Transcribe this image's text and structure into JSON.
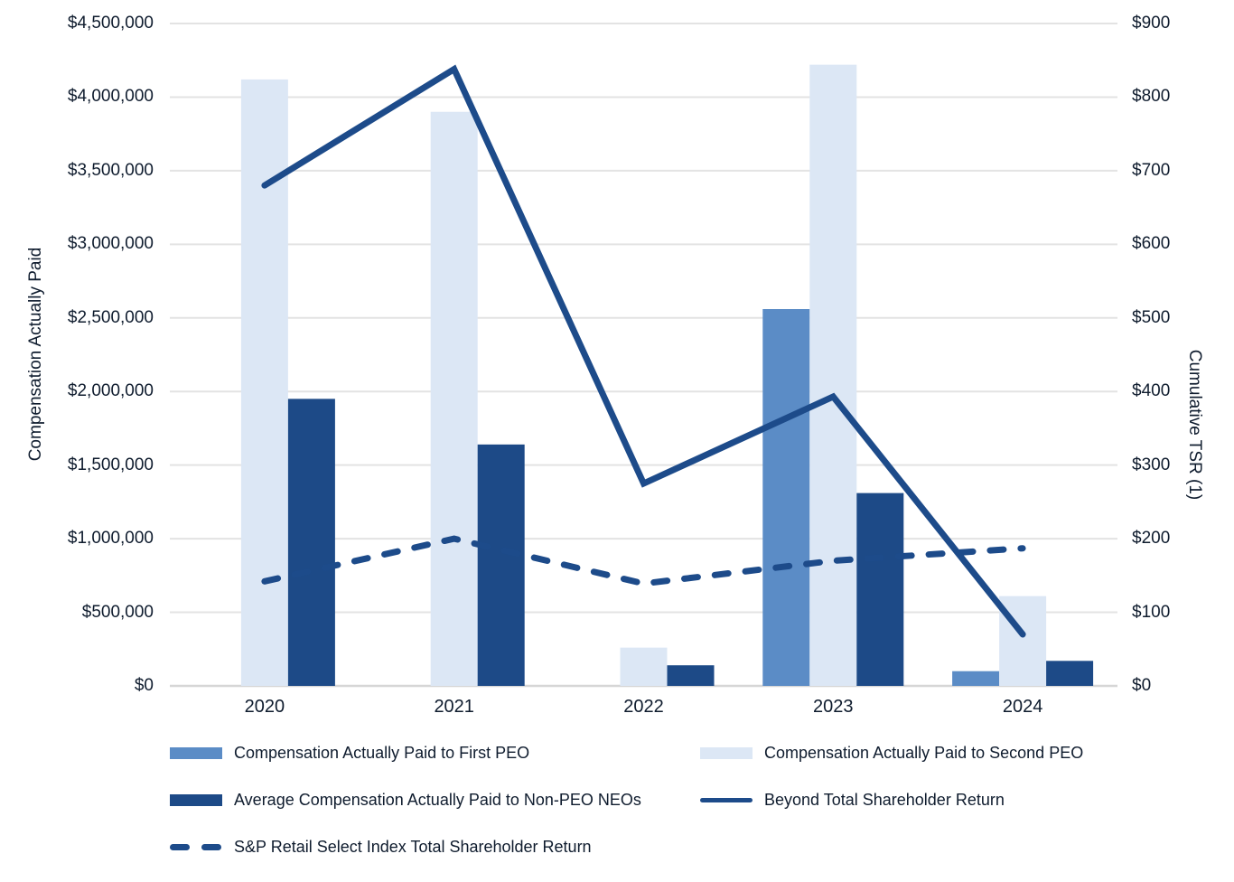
{
  "chart_data": {
    "type": "bar",
    "subtype": "combo-bar-line-dual-axis",
    "categories": [
      "2020",
      "2021",
      "2022",
      "2023",
      "2024"
    ],
    "left_axis": {
      "label": "Compensation Actually Paid",
      "min": 0,
      "max": 4500000,
      "tick_values": [
        4500000,
        4000000,
        3500000,
        3000000,
        2500000,
        2000000,
        1500000,
        1000000,
        500000,
        0
      ],
      "tick_labels": [
        "$4,500,000",
        "$4,000,000",
        "$3,500,000",
        "$3,000,000",
        "$2,500,000",
        "$2,000,000",
        "$1,500,000",
        "$1,000,000",
        "$500,000",
        "$0"
      ]
    },
    "right_axis": {
      "label": "Cumulative TSR (1)",
      "min": 0,
      "max": 900,
      "tick_values": [
        900,
        800,
        700,
        600,
        500,
        400,
        300,
        200,
        100,
        0
      ],
      "tick_labels": [
        "$900",
        "$800",
        "$700",
        "$600",
        "$500",
        "$400",
        "$300",
        "$200",
        "$100",
        "$0"
      ]
    },
    "series": [
      {
        "name": "Compensation Actually Paid to First PEO",
        "type": "bar",
        "axis": "left",
        "color": "#5b8cc6",
        "values": [
          null,
          null,
          null,
          2560000,
          100000
        ]
      },
      {
        "name": "Compensation Actually Paid to Second PEO",
        "type": "bar",
        "axis": "left",
        "color": "#dce7f5",
        "values": [
          4120000,
          3900000,
          260000,
          4220000,
          610000
        ]
      },
      {
        "name": "Average Compensation Actually Paid to Non-PEO NEOs",
        "type": "bar",
        "axis": "left",
        "color": "#1d4a87",
        "values": [
          1950000,
          1640000,
          140000,
          1310000,
          170000
        ]
      },
      {
        "name": "Beyond Total Shareholder Return",
        "type": "line",
        "axis": "right",
        "color": "#1d4b8a",
        "values": [
          680,
          838,
          275,
          393,
          70
        ]
      },
      {
        "name": "S&P Retail Select Index Total Shareholder Return",
        "type": "line-dashed",
        "axis": "right",
        "color": "#1d4b8a",
        "values": [
          142,
          200,
          139,
          170,
          187
        ]
      }
    ],
    "legend_rows": [
      [
        0,
        1
      ],
      [
        2,
        3
      ],
      [
        4
      ]
    ],
    "grid": true,
    "legend_position": "bottom-left"
  },
  "colors": {
    "background": "#ffffff",
    "text": "#0f1c2e",
    "gridline": "#e3e3e3",
    "axis_line": "#d6d6d6"
  }
}
